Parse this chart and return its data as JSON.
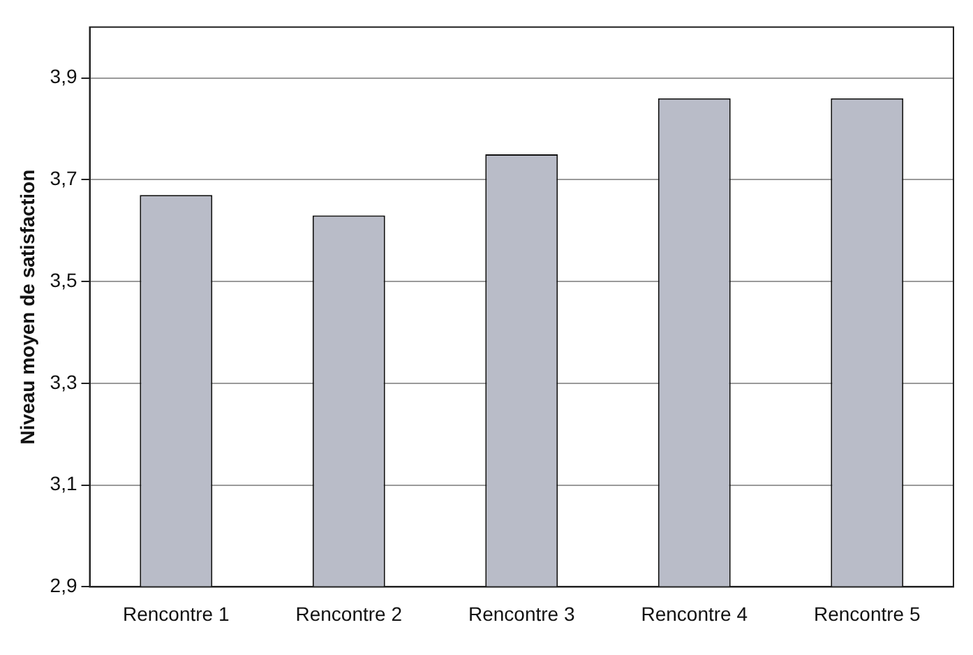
{
  "chart_data": {
    "type": "bar",
    "ylabel": "Niveau moyen de satisfaction",
    "categories": [
      "Rencontre 1",
      "Rencontre 2",
      "Rencontre 3",
      "Rencontre 4",
      "Rencontre 5"
    ],
    "values": [
      3.67,
      3.63,
      3.75,
      3.86,
      3.86
    ],
    "color": "#b9bcc8",
    "ylim": [
      2.9,
      4.0
    ],
    "yticks": [
      {
        "value": 2.9,
        "label": "2,9"
      },
      {
        "value": 3.1,
        "label": "3,1"
      },
      {
        "value": 3.3,
        "label": "3,3"
      },
      {
        "value": 3.5,
        "label": "3,5"
      },
      {
        "value": 3.7,
        "label": "3,7"
      },
      {
        "value": 3.9,
        "label": "3,9"
      }
    ],
    "grid": "y"
  }
}
